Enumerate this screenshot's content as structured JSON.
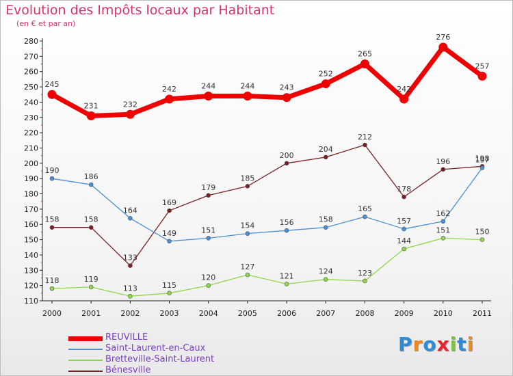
{
  "title": "Evolution des Impôts locaux par Habitant",
  "subtitle": "(en € et par an)",
  "logo": {
    "text": "Proxiti",
    "letter_colors": [
      "#2e8bd6",
      "#f08a1c",
      "#2e8bd6",
      "#e8242c",
      "#7cc242",
      "#2e8bd6",
      "#f08a1c"
    ]
  },
  "chart_data": {
    "type": "line",
    "categories": [
      "2000",
      "2001",
      "2002",
      "2003",
      "2004",
      "2005",
      "2006",
      "2007",
      "2008",
      "2009",
      "2010",
      "2011"
    ],
    "ylim": [
      110,
      280
    ],
    "yticks": [
      110,
      120,
      130,
      140,
      150,
      160,
      170,
      180,
      190,
      200,
      210,
      220,
      230,
      240,
      250,
      260,
      270,
      280
    ],
    "xlabel": "",
    "ylabel": "",
    "grid": false,
    "legend_position": "bottom-left",
    "series": [
      {
        "name": "REUVILLE",
        "color": "#ee0000",
        "values": [
          245,
          231,
          232,
          242,
          244,
          244,
          243,
          252,
          265,
          242,
          276,
          257
        ],
        "labels": [
          "245",
          "231",
          "232",
          "242",
          "244",
          "244",
          "243",
          "252",
          "265",
          "242",
          "276",
          "257"
        ]
      },
      {
        "name": "Saint-Laurent-en-Caux",
        "color": "#4a8fd4",
        "values": [
          190,
          186,
          164,
          149,
          151,
          154,
          156,
          158,
          165,
          157,
          162,
          197
        ],
        "labels": [
          "190",
          "186",
          "164",
          "149",
          "151",
          "154",
          "156",
          "158",
          "165",
          "157",
          "162",
          "197"
        ]
      },
      {
        "name": "Bretteville-Saint-Laurent",
        "color": "#8fd64a",
        "values": [
          118,
          119,
          113,
          115,
          120,
          127,
          121,
          124,
          123,
          144,
          151,
          150
        ],
        "labels": [
          "118",
          "119",
          "113",
          "115",
          "120",
          "127",
          "121",
          "124",
          "123",
          "144",
          "151",
          "150"
        ]
      },
      {
        "name": "Bénesville",
        "color": "#7a1f22",
        "values": [
          158,
          158,
          133,
          169,
          179,
          185,
          200,
          204,
          212,
          178,
          196,
          198
        ],
        "labels": [
          "158",
          "158",
          "133",
          "169",
          "179",
          "185",
          "200",
          "204",
          "212",
          "178",
          "196",
          "198"
        ]
      }
    ]
  }
}
